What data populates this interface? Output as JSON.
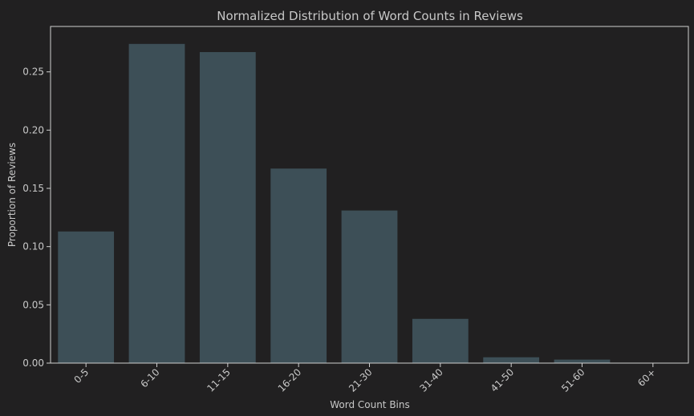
{
  "chart_data": {
    "type": "bar",
    "title": "Normalized Distribution of Word Counts in Reviews",
    "xlabel": "Word Count Bins",
    "ylabel": "Proportion of Reviews",
    "categories": [
      "0-5",
      "6-10",
      "11-15",
      "16-20",
      "21-30",
      "31-40",
      "41-50",
      "51-60",
      "60+"
    ],
    "values": [
      0.113,
      0.274,
      0.267,
      0.167,
      0.131,
      0.038,
      0.005,
      0.003,
      0.0
    ],
    "ylim": [
      0,
      0.289
    ],
    "yticks": [
      0.0,
      0.05,
      0.1,
      0.15,
      0.2,
      0.25
    ],
    "ytick_labels": [
      "0.00",
      "0.05",
      "0.10",
      "0.15",
      "0.20",
      "0.25"
    ],
    "grid": false,
    "legend": "none",
    "colors": {
      "background": "#212021",
      "bar": "#3d4f57",
      "axis": "#cfcfcf",
      "text": "#c8c8c8"
    }
  }
}
